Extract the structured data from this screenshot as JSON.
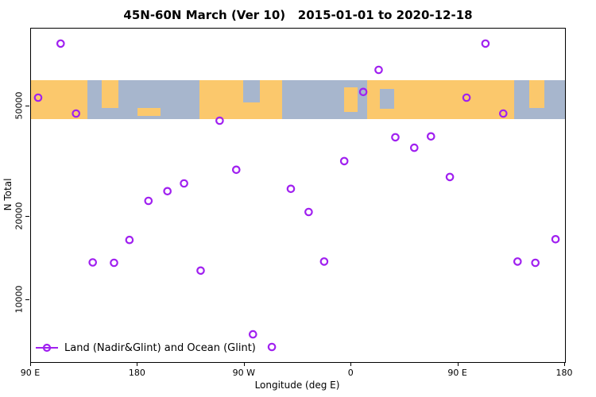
{
  "chart_data": {
    "type": "scatter",
    "title": "45N-60N March (Ver 10)   2015-01-01 to 2020-12-18",
    "xlabel": "Longitude (deg E)",
    "ylabel": "N Total",
    "legend_label": "Land (Nadir&Glint) and Ocean (Glint)",
    "legend_position": "bottom-left",
    "grid": false,
    "marker_color": "#A020F0",
    "x_axis": {
      "min": 90,
      "max": 540,
      "note": "longitude axis wraps eastward: 90E -> 180 -> 90W -> 0 -> 90E -> 180",
      "ticks": [
        {
          "value": 90,
          "label": "90 E"
        },
        {
          "value": 180,
          "label": "180"
        },
        {
          "value": 270,
          "label": "90 W"
        },
        {
          "value": 360,
          "label": "0"
        },
        {
          "value": 450,
          "label": "90 E"
        },
        {
          "value": 540,
          "label": "180"
        }
      ]
    },
    "y_axis": {
      "scale": "log",
      "min": 6000,
      "max": 95000,
      "ticks": [
        {
          "value": 10000,
          "label": "10000"
        },
        {
          "value": 20000,
          "label": "20000"
        },
        {
          "value": 50000,
          "label": "50000"
        }
      ]
    },
    "map_band": {
      "n_min": 45000,
      "n_max": 62000,
      "ocean_color": "#A7B6CD",
      "land_color": "#FBC86C",
      "land_segments": [
        {
          "name": "siberia-east",
          "x0": 0.0,
          "x1": 0.105,
          "y0": 0.0,
          "y1": 1.0
        },
        {
          "name": "kamchatka",
          "x0": 0.133,
          "x1": 0.163,
          "y0": 0.0,
          "y1": 0.72
        },
        {
          "name": "aleutians",
          "x0": 0.2,
          "x1": 0.242,
          "y0": 0.72,
          "y1": 0.92
        },
        {
          "name": "north-america",
          "x0": 0.315,
          "x1": 0.47,
          "y0": 0.0,
          "y1": 1.0
        },
        {
          "name": "british-isles",
          "x0": 0.586,
          "x1": 0.612,
          "y0": 0.18,
          "y1": 0.82
        },
        {
          "name": "europe-siberia",
          "x0": 0.63,
          "x1": 0.905,
          "y0": 0.0,
          "y1": 1.0
        },
        {
          "name": "kamchatka-east",
          "x0": 0.933,
          "x1": 0.962,
          "y0": 0.0,
          "y1": 0.72
        }
      ],
      "ocean_notches": [
        {
          "name": "hudson-bay",
          "x0": 0.398,
          "x1": 0.428,
          "y0": 0.0,
          "y1": 0.58
        },
        {
          "name": "baltic-sea",
          "x0": 0.654,
          "x1": 0.68,
          "y0": 0.22,
          "y1": 0.75
        }
      ]
    },
    "points": [
      {
        "lon": 96,
        "n": 53600
      },
      {
        "lon": 115,
        "n": 83900
      },
      {
        "lon": 128,
        "n": 47000
      },
      {
        "lon": 142,
        "n": 13700
      },
      {
        "lon": 160,
        "n": 13650
      },
      {
        "lon": 173,
        "n": 16500
      },
      {
        "lon": 189,
        "n": 22800
      },
      {
        "lon": 205,
        "n": 24700
      },
      {
        "lon": 219,
        "n": 26350
      },
      {
        "lon": 233,
        "n": 12800
      },
      {
        "lon": 249,
        "n": 44300
      },
      {
        "lon": 263,
        "n": 29500
      },
      {
        "lon": 277,
        "n": 7550
      },
      {
        "lon": 293,
        "n": 6800
      },
      {
        "lon": 309,
        "n": 25200
      },
      {
        "lon": 324,
        "n": 20800
      },
      {
        "lon": 337,
        "n": 13800
      },
      {
        "lon": 354,
        "n": 31700
      },
      {
        "lon": 370,
        "n": 56200
      },
      {
        "lon": 383,
        "n": 67500
      },
      {
        "lon": 397,
        "n": 38600
      },
      {
        "lon": 413,
        "n": 35400
      },
      {
        "lon": 427,
        "n": 38900
      },
      {
        "lon": 443,
        "n": 27800
      },
      {
        "lon": 457,
        "n": 53600
      },
      {
        "lon": 473,
        "n": 83900
      },
      {
        "lon": 488,
        "n": 47000
      },
      {
        "lon": 500,
        "n": 13800
      },
      {
        "lon": 515,
        "n": 13650
      },
      {
        "lon": 532,
        "n": 16600
      }
    ]
  }
}
